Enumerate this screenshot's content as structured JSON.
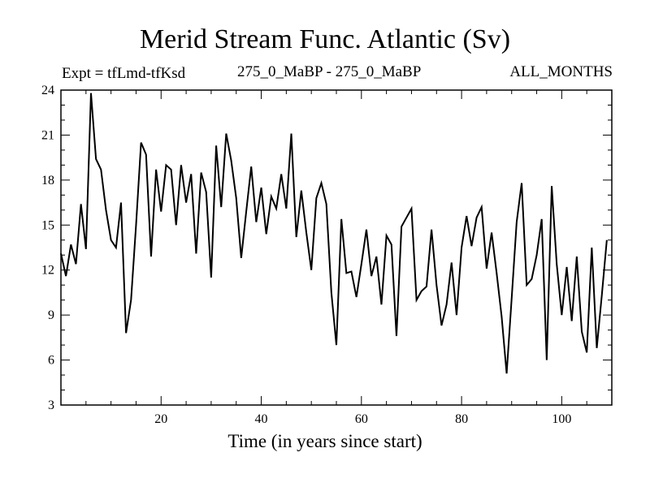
{
  "chart_data": {
    "type": "line",
    "title": "Merid Stream Func. Atlantic (Sv)",
    "subtitle_left": "Expt = tfLmd-tfKsd",
    "subtitle_center": "275_0_MaBP - 275_0_MaBP",
    "subtitle_right": "ALL_MONTHS",
    "xlabel": "Time (in years since start)",
    "ylabel": "",
    "xlim": [
      0,
      110
    ],
    "ylim": [
      3,
      24
    ],
    "xticks": [
      20,
      40,
      60,
      80,
      100
    ],
    "yticks": [
      3,
      6,
      9,
      12,
      15,
      18,
      21,
      24
    ],
    "x_start": 0,
    "x_step": 1,
    "series": [
      {
        "name": "Merid Stream Func. Atlantic",
        "values": [
          13.1,
          11.6,
          13.7,
          12.4,
          16.4,
          13.4,
          23.8,
          19.4,
          18.7,
          16.0,
          14.0,
          13.5,
          16.5,
          7.8,
          10.0,
          15.0,
          20.5,
          19.7,
          12.9,
          18.7,
          15.9,
          19.0,
          18.7,
          15.0,
          19.0,
          16.5,
          18.4,
          13.1,
          18.5,
          17.2,
          11.5,
          20.3,
          16.2,
          21.1,
          19.3,
          16.8,
          12.8,
          15.9,
          18.9,
          15.2,
          17.5,
          14.4,
          16.9,
          16.1,
          18.4,
          16.1,
          21.1,
          14.2,
          17.3,
          14.5,
          12.0,
          16.8,
          17.8,
          16.4,
          10.5,
          7.0,
          15.4,
          11.8,
          11.9,
          10.2,
          12.4,
          14.7,
          11.6,
          12.9,
          9.7,
          14.3,
          13.7,
          7.6,
          14.9,
          15.5,
          16.1,
          10.0,
          10.6,
          10.9,
          14.7,
          11.0,
          8.3,
          9.7,
          12.5,
          9.0,
          13.5,
          15.6,
          13.6,
          15.5,
          16.2,
          12.1,
          14.5,
          11.8,
          8.9,
          5.1,
          10.1,
          15.2,
          17.8,
          11.0,
          11.4,
          13.0,
          15.4,
          6.0,
          17.6,
          12.4,
          9.0,
          12.2,
          8.6,
          12.9,
          7.9,
          6.5,
          13.5,
          6.8,
          10.3,
          14.0
        ]
      }
    ]
  }
}
